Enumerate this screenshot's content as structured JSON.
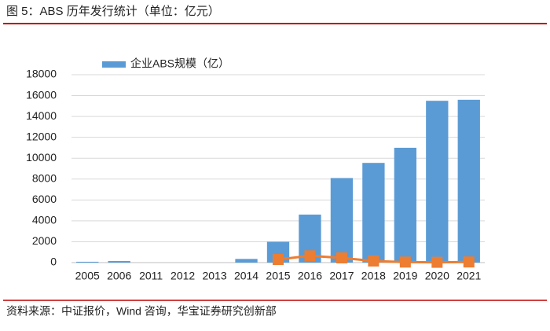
{
  "title": "图 5：ABS 历年发行统计（单位：亿元）",
  "source": "资料来源：中证报价，Wind 咨询，华宝证券研究创新部",
  "chart_data": {
    "type": "bar",
    "categories": [
      "2005",
      "2006",
      "2011",
      "2012",
      "2013",
      "2014",
      "2015",
      "2016",
      "2017",
      "2018",
      "2019",
      "2020",
      "2021"
    ],
    "series": [
      {
        "name": "企业ABS规模（亿）",
        "type": "bar",
        "color": "#5b9bd5",
        "values": [
          80,
          150,
          0,
          0,
          0,
          350,
          2000,
          4600,
          8100,
          9550,
          11000,
          15500,
          15600
        ]
      },
      {
        "type": "line",
        "color": "#ed7d31",
        "values": [
          null,
          null,
          null,
          null,
          null,
          null,
          300,
          650,
          450,
          150,
          50,
          30,
          60
        ]
      }
    ],
    "ylim": [
      0,
      18000
    ],
    "yticks": [
      0,
      2000,
      4000,
      6000,
      8000,
      10000,
      12000,
      14000,
      16000,
      18000
    ],
    "grid": true
  }
}
